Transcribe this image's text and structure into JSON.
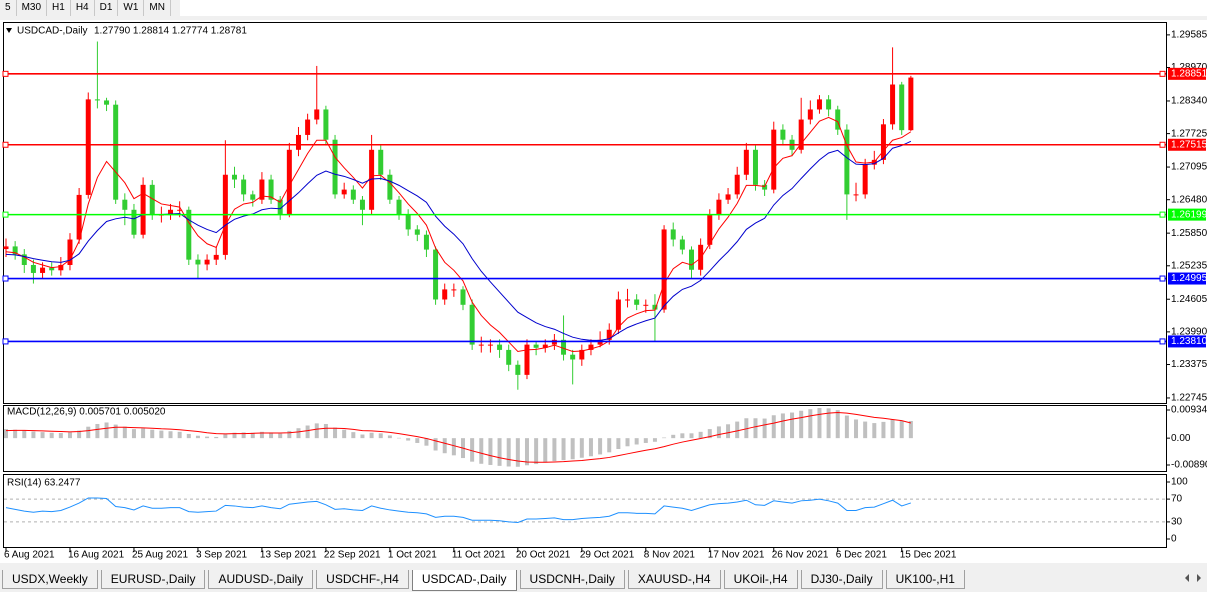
{
  "toolbar": {
    "timeframes": [
      "5",
      "M30",
      "H1",
      "H4",
      "D1",
      "W1",
      "MN"
    ]
  },
  "tabs": {
    "items": [
      "USDX,Weekly",
      "EURUSD-,Daily",
      "AUDUSD-,Daily",
      "USDCHF-,H4",
      "USDCAD-,Daily",
      "USDCNH-,Daily",
      "XAUUSD-,H4",
      "UKOil-,H4",
      "DJ30-,Daily",
      "UK100-,H1"
    ],
    "active": 4
  },
  "chart_data": [
    {
      "type": "candlestick",
      "title": "USDCAD-,Daily",
      "subtitle": "1.27790 1.28814 1.27774 1.28781",
      "categories": [
        "6 Aug 2021",
        null,
        null,
        null,
        null,
        null,
        null,
        "16 Aug 2021",
        null,
        null,
        null,
        null,
        null,
        null,
        "25 Aug 2021",
        null,
        null,
        null,
        null,
        null,
        null,
        "3 Sep 2021",
        null,
        null,
        null,
        null,
        null,
        null,
        "13 Sep 2021",
        null,
        null,
        null,
        null,
        null,
        null,
        "22 Sep 2021",
        null,
        null,
        null,
        null,
        null,
        null,
        "1 Oct 2021",
        null,
        null,
        null,
        null,
        null,
        null,
        "11 Oct 2021",
        null,
        null,
        null,
        null,
        null,
        null,
        "20 Oct 2021",
        null,
        null,
        null,
        null,
        null,
        null,
        "29 Oct 2021",
        null,
        null,
        null,
        null,
        null,
        null,
        "8 Nov 2021",
        null,
        null,
        null,
        null,
        null,
        null,
        "17 Nov 2021",
        null,
        null,
        null,
        null,
        null,
        null,
        "26 Nov 2021",
        null,
        null,
        null,
        null,
        null,
        null,
        "6 Dec 2021",
        null,
        null,
        null,
        null,
        null,
        null,
        "15 Dec 2021",
        null
      ],
      "open": [
        1.2555,
        1.256,
        1.2545,
        1.2525,
        1.251,
        1.252,
        1.2515,
        1.2525,
        1.2573,
        1.2657,
        1.2837,
        1.2835,
        1.2827,
        1.2648,
        1.2629,
        1.2582,
        1.2676,
        1.262,
        1.262,
        1.2629,
        1.2629,
        1.2535,
        1.2526,
        1.2535,
        1.2544,
        1.2695,
        1.2686,
        1.2658,
        1.2648,
        1.2686,
        1.2648,
        1.262,
        1.2742,
        1.277,
        1.2799,
        1.2818,
        1.2761,
        1.2658,
        1.2667,
        1.2648,
        1.2629,
        1.2742,
        1.2695,
        1.2648,
        1.262,
        1.2592,
        1.2582,
        1.2554,
        1.246,
        1.2479,
        1.2479,
        1.245,
        1.2375,
        1.2375,
        1.2375,
        1.2365,
        1.2337,
        1.2318,
        1.2375,
        1.2369,
        1.2375,
        1.2384,
        1.2356,
        1.2347,
        1.2365,
        1.2375,
        1.2384,
        1.2403,
        1.246,
        1.246,
        1.245,
        1.245,
        1.2441,
        1.2592,
        1.2573,
        1.2554,
        1.2516,
        1.2563,
        1.262,
        1.2648,
        1.2658,
        1.2695,
        1.2742,
        1.2676,
        1.2667,
        1.278,
        1.2761,
        1.2742,
        1.2799,
        1.2818,
        1.2837,
        1.2818,
        1.278,
        1.2658,
        1.2658,
        1.2714,
        1.2723,
        1.279,
        1.2865,
        1.2779
      ],
      "high": [
        1.2575,
        1.257,
        1.2555,
        1.2535,
        1.253,
        1.253,
        1.254,
        1.2585,
        1.267,
        1.285,
        1.2946,
        1.284,
        1.2835,
        1.266,
        1.264,
        1.269,
        1.2685,
        1.2635,
        1.264,
        1.2645,
        1.2635,
        1.2545,
        1.2545,
        1.256,
        1.276,
        1.271,
        1.2695,
        1.2665,
        1.27,
        1.2695,
        1.2655,
        1.2755,
        1.2785,
        1.281,
        1.29,
        1.2825,
        1.277,
        1.268,
        1.2675,
        1.2655,
        1.277,
        1.275,
        1.2705,
        1.2655,
        1.263,
        1.26,
        1.259,
        1.256,
        1.249,
        1.249,
        1.2485,
        1.246,
        1.239,
        1.2385,
        1.2385,
        1.2375,
        1.2345,
        1.2385,
        1.238,
        1.2385,
        1.2395,
        1.243,
        1.2365,
        1.2375,
        1.2385,
        1.24,
        1.2415,
        1.2475,
        1.248,
        1.247,
        1.246,
        1.247,
        1.26,
        1.2605,
        1.258,
        1.256,
        1.2575,
        1.263,
        1.266,
        1.267,
        1.271,
        1.2755,
        1.275,
        1.2685,
        1.2795,
        1.279,
        1.277,
        1.284,
        1.2835,
        1.2845,
        1.2845,
        1.2825,
        1.279,
        1.268,
        1.2725,
        1.274,
        1.28,
        1.2935,
        1.287,
        1.28814
      ],
      "low": [
        1.254,
        1.2535,
        1.251,
        1.249,
        1.25,
        1.2505,
        1.2505,
        1.2515,
        1.2565,
        1.265,
        1.282,
        1.2815,
        1.264,
        1.26,
        1.2575,
        1.2575,
        1.261,
        1.2605,
        1.261,
        1.2615,
        1.2525,
        1.25,
        1.2515,
        1.2525,
        1.2535,
        1.267,
        1.2645,
        1.2635,
        1.264,
        1.264,
        1.261,
        1.2615,
        1.273,
        1.276,
        1.279,
        1.275,
        1.265,
        1.265,
        1.264,
        1.26,
        1.262,
        1.2685,
        1.264,
        1.261,
        1.258,
        1.257,
        1.254,
        1.245,
        1.245,
        1.2465,
        1.244,
        1.2365,
        1.236,
        1.236,
        1.235,
        1.2325,
        1.229,
        1.231,
        1.2355,
        1.236,
        1.2365,
        1.2345,
        1.23,
        1.2335,
        1.2355,
        1.237,
        1.2375,
        1.2395,
        1.2445,
        1.244,
        1.2435,
        1.238,
        1.2435,
        1.256,
        1.2545,
        1.25,
        1.2505,
        1.2555,
        1.261,
        1.264,
        1.265,
        1.2685,
        1.2665,
        1.2655,
        1.266,
        1.275,
        1.273,
        1.2735,
        1.279,
        1.281,
        1.2805,
        1.277,
        1.261,
        1.2645,
        1.265,
        1.2705,
        1.2715,
        1.278,
        1.277,
        1.27774
      ],
      "close": [
        1.256,
        1.2545,
        1.2525,
        1.251,
        1.252,
        1.2515,
        1.2525,
        1.2573,
        1.2657,
        1.2837,
        1.2835,
        1.2827,
        1.2648,
        1.2629,
        1.2582,
        1.2676,
        1.262,
        1.262,
        1.2629,
        1.2629,
        1.2535,
        1.2526,
        1.2535,
        1.2544,
        1.2695,
        1.2686,
        1.2658,
        1.2648,
        1.2686,
        1.2648,
        1.262,
        1.2742,
        1.277,
        1.2799,
        1.2818,
        1.2761,
        1.2658,
        1.2667,
        1.2648,
        1.2629,
        1.2742,
        1.2695,
        1.2648,
        1.262,
        1.2592,
        1.2582,
        1.2554,
        1.246,
        1.2479,
        1.2479,
        1.245,
        1.2375,
        1.2375,
        1.2375,
        1.2365,
        1.2337,
        1.2318,
        1.2375,
        1.2369,
        1.2375,
        1.2384,
        1.2356,
        1.2347,
        1.2365,
        1.2375,
        1.2384,
        1.2403,
        1.246,
        1.246,
        1.245,
        1.245,
        1.2441,
        1.2592,
        1.2573,
        1.2554,
        1.2516,
        1.2563,
        1.262,
        1.2648,
        1.2658,
        1.2695,
        1.2742,
        1.2676,
        1.2667,
        1.278,
        1.2761,
        1.2742,
        1.2799,
        1.2818,
        1.2837,
        1.2818,
        1.278,
        1.2658,
        1.2658,
        1.2714,
        1.2723,
        1.279,
        1.2865,
        1.2779,
        1.28781
      ],
      "up_color": "#ff0000",
      "down_color": "#32cd32",
      "overlays": [
        {
          "color": "#ff0000",
          "values": [
            1.255,
            1.2548,
            1.254,
            1.253,
            1.2525,
            1.252,
            1.2522,
            1.2535,
            1.257,
            1.264,
            1.269,
            1.272,
            1.27,
            1.268,
            1.265,
            1.266,
            1.265,
            1.264,
            1.2637,
            1.2634,
            1.2605,
            1.258,
            1.2565,
            1.2558,
            1.26,
            1.263,
            1.264,
            1.2643,
            1.2655,
            1.2653,
            1.2643,
            1.2675,
            1.2705,
            1.2735,
            1.276,
            1.276,
            1.2728,
            1.2708,
            1.269,
            1.267,
            1.2693,
            1.2694,
            1.268,
            1.2661,
            1.264,
            1.2622,
            1.26,
            1.2557,
            1.253,
            1.2515,
            1.2495,
            1.2455,
            1.243,
            1.2412,
            1.2398,
            1.238,
            1.2362,
            1.2365,
            1.2366,
            1.2369,
            1.2374,
            1.2368,
            1.2362,
            1.2363,
            1.2367,
            1.2372,
            1.2382,
            1.2408,
            1.2425,
            1.2433,
            1.2439,
            1.244,
            1.249,
            1.2518,
            1.253,
            1.2525,
            1.2538,
            1.2565,
            1.2593,
            1.2615,
            1.2641,
            1.2675,
            1.2675,
            1.2673,
            1.2708,
            1.2726,
            1.2731,
            1.2754,
            1.2775,
            1.2796,
            1.2803,
            1.2795,
            1.275,
            1.2719,
            1.2717,
            1.2719,
            1.274,
            1.276,
            1.2765,
            1.2776
          ]
        },
        {
          "color": "#0000cd",
          "values": [
            1.2545,
            1.2544,
            1.2541,
            1.2537,
            1.2534,
            1.2531,
            1.253,
            1.2534,
            1.2546,
            1.257,
            1.259,
            1.2607,
            1.2612,
            1.2615,
            1.2612,
            1.262,
            1.262,
            1.262,
            1.2621,
            1.2622,
            1.261,
            1.26,
            1.2592,
            1.2586,
            1.26,
            1.2611,
            1.2617,
            1.2621,
            1.2629,
            1.2632,
            1.2631,
            1.2646,
            1.2661,
            1.2678,
            1.2694,
            1.2702,
            1.2696,
            1.2692,
            1.2686,
            1.2679,
            1.2687,
            1.2688,
            1.2683,
            1.2675,
            1.2665,
            1.2655,
            1.2643,
            1.2617,
            1.2598,
            1.2583,
            1.2565,
            1.2537,
            1.2513,
            1.2493,
            1.2474,
            1.2455,
            1.2436,
            1.2426,
            1.2416,
            1.2409,
            1.2404,
            1.2396,
            1.2389,
            1.2385,
            1.2383,
            1.2383,
            1.2386,
            1.2397,
            1.2407,
            1.2414,
            1.242,
            1.2425,
            1.2448,
            1.2466,
            1.2479,
            1.2485,
            1.2496,
            1.2514,
            1.2533,
            1.255,
            1.2569,
            1.2592,
            1.2604,
            1.2613,
            1.2638,
            1.2656,
            1.2669,
            1.2688,
            1.2706,
            1.2723,
            1.2736,
            1.2741,
            1.2727,
            1.2715,
            1.2714,
            1.2716,
            1.2726,
            1.2745,
            1.275,
            1.2758
          ]
        }
      ],
      "levels": [
        {
          "value": 1.28851,
          "label": "1.28851",
          "color": "#ff0000"
        },
        {
          "value": 1.27515,
          "label": "1.27515",
          "color": "#ff0000"
        },
        {
          "value": 1.26199,
          "label": "1.26199",
          "color": "#00ff00"
        },
        {
          "value": 1.24995,
          "label": "1.24995",
          "color": "#0000ff"
        },
        {
          "value": 1.2381,
          "label": "1.23810",
          "color": "#0000ff"
        }
      ],
      "ylim": [
        1.2265,
        1.2979
      ],
      "yticks": [
        1.29585,
        {
          "value": 1.2897,
          "label": "1.28970"
        },
        {
          "value": 1.2834,
          "label": "1.28340"
        },
        1.27725,
        1.27095,
        {
          "value": 1.2648,
          "label": "1.26480"
        },
        {
          "value": 1.2585,
          "label": "1.25850"
        },
        1.25235,
        1.24605,
        {
          "value": 1.2399,
          "label": "1.23990"
        },
        1.23375,
        1.22745
      ],
      "grid": false
    },
    {
      "type": "macd",
      "title": "MACD(12,26,9) 0.005701 0.005020",
      "values": [
        0.003,
        0.0028,
        0.0025,
        0.0022,
        0.002,
        0.0018,
        0.0017,
        0.0019,
        0.0025,
        0.0038,
        0.0047,
        0.0052,
        0.0045,
        0.0038,
        0.003,
        0.0032,
        0.0028,
        0.0025,
        0.0023,
        0.0021,
        0.0014,
        0.0008,
        0.0005,
        0.0004,
        0.0013,
        0.0018,
        0.0019,
        0.0018,
        0.0021,
        0.0019,
        0.0015,
        0.0024,
        0.0033,
        0.0042,
        0.0049,
        0.0047,
        0.0035,
        0.0028,
        0.002,
        0.0012,
        0.0018,
        0.0016,
        0.0009,
        0.0001,
        -0.0008,
        -0.0016,
        -0.0025,
        -0.0041,
        -0.005,
        -0.0057,
        -0.0066,
        -0.0078,
        -0.0085,
        -0.0089,
        -0.0092,
        -0.0094,
        -0.0095,
        -0.009,
        -0.0086,
        -0.0081,
        -0.0076,
        -0.0073,
        -0.007,
        -0.0065,
        -0.006,
        -0.0054,
        -0.0047,
        -0.0036,
        -0.0027,
        -0.0021,
        -0.0016,
        -0.0012,
        0.0002,
        0.0011,
        0.0016,
        0.0016,
        0.0021,
        0.003,
        0.0039,
        0.0046,
        0.0055,
        0.0066,
        0.0066,
        0.0065,
        0.0076,
        0.0082,
        0.0085,
        0.0091,
        0.0096,
        0.01,
        0.0099,
        0.0093,
        0.0075,
        0.0062,
        0.0055,
        0.005,
        0.0054,
        0.0062,
        0.0057,
        0.005701
      ],
      "color": "#c0c0c0",
      "signal": {
        "color": "#ff0000",
        "values": [
          0.0025,
          0.0026,
          0.0026,
          0.0025,
          0.0024,
          0.0023,
          0.0022,
          0.0021,
          0.0022,
          0.0025,
          0.0029,
          0.0033,
          0.0036,
          0.0036,
          0.0035,
          0.0034,
          0.0033,
          0.0031,
          0.003,
          0.0028,
          0.0025,
          0.0022,
          0.0018,
          0.0015,
          0.0014,
          0.0015,
          0.0015,
          0.0016,
          0.0017,
          0.0017,
          0.0017,
          0.0018,
          0.0021,
          0.0025,
          0.003,
          0.0033,
          0.0033,
          0.0032,
          0.0029,
          0.0025,
          0.0024,
          0.0022,
          0.0019,
          0.0015,
          0.001,
          0.0005,
          -0.0001,
          -0.0009,
          -0.0017,
          -0.0025,
          -0.0033,
          -0.0042,
          -0.005,
          -0.0058,
          -0.0065,
          -0.0071,
          -0.0076,
          -0.0079,
          -0.008,
          -0.008,
          -0.0079,
          -0.0078,
          -0.0076,
          -0.0074,
          -0.0071,
          -0.0068,
          -0.0064,
          -0.0058,
          -0.0052,
          -0.0046,
          -0.004,
          -0.0035,
          -0.0028,
          -0.002,
          -0.0013,
          -0.0007,
          -0.0001,
          0.0005,
          0.0012,
          0.0018,
          0.0024,
          0.0031,
          0.0038,
          0.0044,
          0.005,
          0.0057,
          0.0063,
          0.0068,
          0.0074,
          0.0079,
          0.0083,
          0.0085,
          0.0083,
          0.0079,
          0.0074,
          0.0069,
          0.0066,
          0.0062,
          0.0058,
          0.00502
        ]
      },
      "ylim": [
        -0.0109,
        0.011
      ],
      "yticks": [
        0.009345,
        {
          "value": 0,
          "label": "0.00"
        },
        -0.008905
      ],
      "grid": false
    },
    {
      "type": "line",
      "title": "RSI(14) 63.2477",
      "values": [
        55,
        52,
        49,
        47,
        49,
        48,
        50,
        56,
        63,
        72,
        72,
        71,
        57,
        55,
        51,
        58,
        54,
        54,
        55,
        55,
        48,
        47,
        48,
        49,
        59,
        58,
        56,
        55,
        58,
        55,
        53,
        61,
        63,
        65,
        66,
        60,
        52,
        53,
        51,
        50,
        58,
        54,
        51,
        49,
        47,
        46,
        44,
        38,
        40,
        40,
        38,
        33,
        33,
        33,
        32,
        30,
        29,
        35,
        35,
        36,
        37,
        34,
        34,
        36,
        37,
        38,
        40,
        46,
        46,
        45,
        45,
        44,
        58,
        56,
        54,
        50,
        55,
        60,
        62,
        63,
        65,
        68,
        60,
        59,
        67,
        65,
        63,
        67,
        68,
        70,
        67,
        63,
        50,
        50,
        55,
        56,
        62,
        68,
        58,
        63.2477
      ],
      "color": "#1e90ff",
      "ylim": [
        0,
        100
      ],
      "yticks": [
        100,
        70,
        30,
        0
      ],
      "grid": true
    }
  ]
}
